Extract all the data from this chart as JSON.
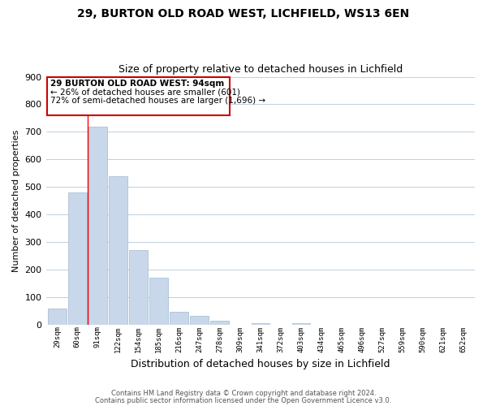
{
  "title": "29, BURTON OLD ROAD WEST, LICHFIELD, WS13 6EN",
  "subtitle": "Size of property relative to detached houses in Lichfield",
  "xlabel": "Distribution of detached houses by size in Lichfield",
  "ylabel": "Number of detached properties",
  "bar_labels": [
    "29sqm",
    "60sqm",
    "91sqm",
    "122sqm",
    "154sqm",
    "185sqm",
    "216sqm",
    "247sqm",
    "278sqm",
    "309sqm",
    "341sqm",
    "372sqm",
    "403sqm",
    "434sqm",
    "465sqm",
    "496sqm",
    "527sqm",
    "559sqm",
    "590sqm",
    "621sqm",
    "652sqm"
  ],
  "bar_values": [
    60,
    480,
    720,
    540,
    270,
    172,
    47,
    33,
    14,
    0,
    7,
    0,
    5,
    0,
    0,
    0,
    0,
    0,
    0,
    0,
    0
  ],
  "bar_color": "#c8d8ea",
  "bar_edge_color": "#a0b8d0",
  "red_line_x": 1.5,
  "ylim": [
    0,
    900
  ],
  "yticks": [
    0,
    100,
    200,
    300,
    400,
    500,
    600,
    700,
    800,
    900
  ],
  "annotation_box_text_line1": "29 BURTON OLD ROAD WEST: 94sqm",
  "annotation_box_text_line2": "← 26% of detached houses are smaller (601)",
  "annotation_box_text_line3": "72% of semi-detached houses are larger (1,696) →",
  "footer_line1": "Contains HM Land Registry data © Crown copyright and database right 2024.",
  "footer_line2": "Contains public sector information licensed under the Open Government Licence v3.0.",
  "background_color": "#ffffff",
  "grid_color": "#c0d0e0",
  "box_facecolor": "#ffffff",
  "box_edgecolor": "#cc0000",
  "title_fontsize": 10,
  "subtitle_fontsize": 9,
  "ylabel_fontsize": 8,
  "xlabel_fontsize": 9
}
